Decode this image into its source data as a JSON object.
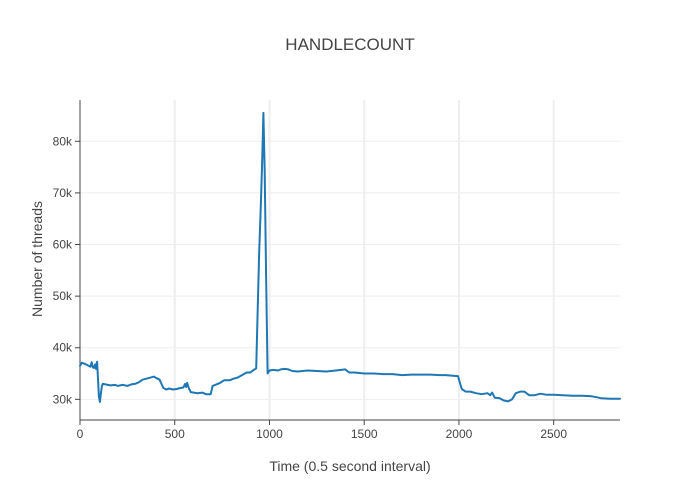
{
  "chart_data": {
    "type": "line",
    "title": "HANDLECOUNT",
    "xlabel": "Time (0.5 second interval)",
    "ylabel": "Number of threads",
    "xlim": [
      0,
      2850
    ],
    "ylim": [
      26000,
      88000
    ],
    "x_ticks": [
      0,
      500,
      1000,
      1500,
      2000,
      2500
    ],
    "x_tick_labels": [
      "0",
      "500",
      "1000",
      "1500",
      "2000",
      "2500"
    ],
    "y_ticks": [
      30000,
      40000,
      50000,
      60000,
      70000,
      80000
    ],
    "y_tick_labels": [
      "30k",
      "40k",
      "50k",
      "60k",
      "70k",
      "80k"
    ],
    "grid": true,
    "series": [
      {
        "color": "#1f77b4",
        "points": [
          [
            0,
            36500
          ],
          [
            10,
            37100
          ],
          [
            30,
            36800
          ],
          [
            55,
            36300
          ],
          [
            62,
            37200
          ],
          [
            68,
            36200
          ],
          [
            75,
            36100
          ],
          [
            80,
            36800
          ],
          [
            85,
            35900
          ],
          [
            90,
            37300
          ],
          [
            95,
            34000
          ],
          [
            100,
            30500
          ],
          [
            105,
            29500
          ],
          [
            110,
            31000
          ],
          [
            115,
            32500
          ],
          [
            120,
            33000
          ],
          [
            135,
            32900
          ],
          [
            160,
            32700
          ],
          [
            185,
            32800
          ],
          [
            200,
            32600
          ],
          [
            225,
            32800
          ],
          [
            250,
            32600
          ],
          [
            270,
            32900
          ],
          [
            290,
            33000
          ],
          [
            310,
            33300
          ],
          [
            330,
            33800
          ],
          [
            350,
            34000
          ],
          [
            370,
            34200
          ],
          [
            390,
            34400
          ],
          [
            405,
            34100
          ],
          [
            420,
            33800
          ],
          [
            430,
            33000
          ],
          [
            440,
            32200
          ],
          [
            455,
            31900
          ],
          [
            470,
            32100
          ],
          [
            490,
            31900
          ],
          [
            510,
            32000
          ],
          [
            530,
            32200
          ],
          [
            545,
            32300
          ],
          [
            555,
            33000
          ],
          [
            560,
            32400
          ],
          [
            565,
            33200
          ],
          [
            575,
            32100
          ],
          [
            585,
            31400
          ],
          [
            600,
            31300
          ],
          [
            620,
            31200
          ],
          [
            645,
            31300
          ],
          [
            665,
            31000
          ],
          [
            690,
            31000
          ],
          [
            700,
            32600
          ],
          [
            720,
            32900
          ],
          [
            740,
            33200
          ],
          [
            760,
            33700
          ],
          [
            790,
            33700
          ],
          [
            810,
            34000
          ],
          [
            830,
            34200
          ],
          [
            850,
            34600
          ],
          [
            880,
            35200
          ],
          [
            900,
            35200
          ],
          [
            912,
            35600
          ],
          [
            930,
            36000
          ],
          [
            945,
            58000
          ],
          [
            955,
            68000
          ],
          [
            962,
            77000
          ],
          [
            968,
            85500
          ],
          [
            975,
            74000
          ],
          [
            982,
            54000
          ],
          [
            990,
            35000
          ],
          [
            1000,
            35600
          ],
          [
            1020,
            35700
          ],
          [
            1045,
            35600
          ],
          [
            1060,
            35800
          ],
          [
            1080,
            35900
          ],
          [
            1100,
            35800
          ],
          [
            1120,
            35500
          ],
          [
            1150,
            35400
          ],
          [
            1200,
            35600
          ],
          [
            1250,
            35500
          ],
          [
            1300,
            35400
          ],
          [
            1350,
            35600
          ],
          [
            1400,
            35800
          ],
          [
            1420,
            35200
          ],
          [
            1450,
            35200
          ],
          [
            1500,
            35000
          ],
          [
            1550,
            35000
          ],
          [
            1600,
            34900
          ],
          [
            1650,
            34900
          ],
          [
            1700,
            34700
          ],
          [
            1750,
            34800
          ],
          [
            1800,
            34800
          ],
          [
            1850,
            34800
          ],
          [
            1900,
            34700
          ],
          [
            1930,
            34700
          ],
          [
            1960,
            34600
          ],
          [
            1995,
            34500
          ],
          [
            2005,
            33200
          ],
          [
            2015,
            32000
          ],
          [
            2035,
            31500
          ],
          [
            2060,
            31500
          ],
          [
            2090,
            31200
          ],
          [
            2120,
            31000
          ],
          [
            2150,
            31200
          ],
          [
            2165,
            30800
          ],
          [
            2175,
            31300
          ],
          [
            2190,
            30300
          ],
          [
            2215,
            30200
          ],
          [
            2235,
            29800
          ],
          [
            2260,
            29600
          ],
          [
            2280,
            30000
          ],
          [
            2300,
            31200
          ],
          [
            2325,
            31500
          ],
          [
            2345,
            31500
          ],
          [
            2370,
            30800
          ],
          [
            2400,
            30800
          ],
          [
            2430,
            31100
          ],
          [
            2460,
            30900
          ],
          [
            2500,
            30900
          ],
          [
            2550,
            30800
          ],
          [
            2600,
            30700
          ],
          [
            2650,
            30700
          ],
          [
            2700,
            30600
          ],
          [
            2730,
            30400
          ],
          [
            2750,
            30200
          ],
          [
            2800,
            30100
          ],
          [
            2850,
            30100
          ]
        ]
      }
    ]
  }
}
